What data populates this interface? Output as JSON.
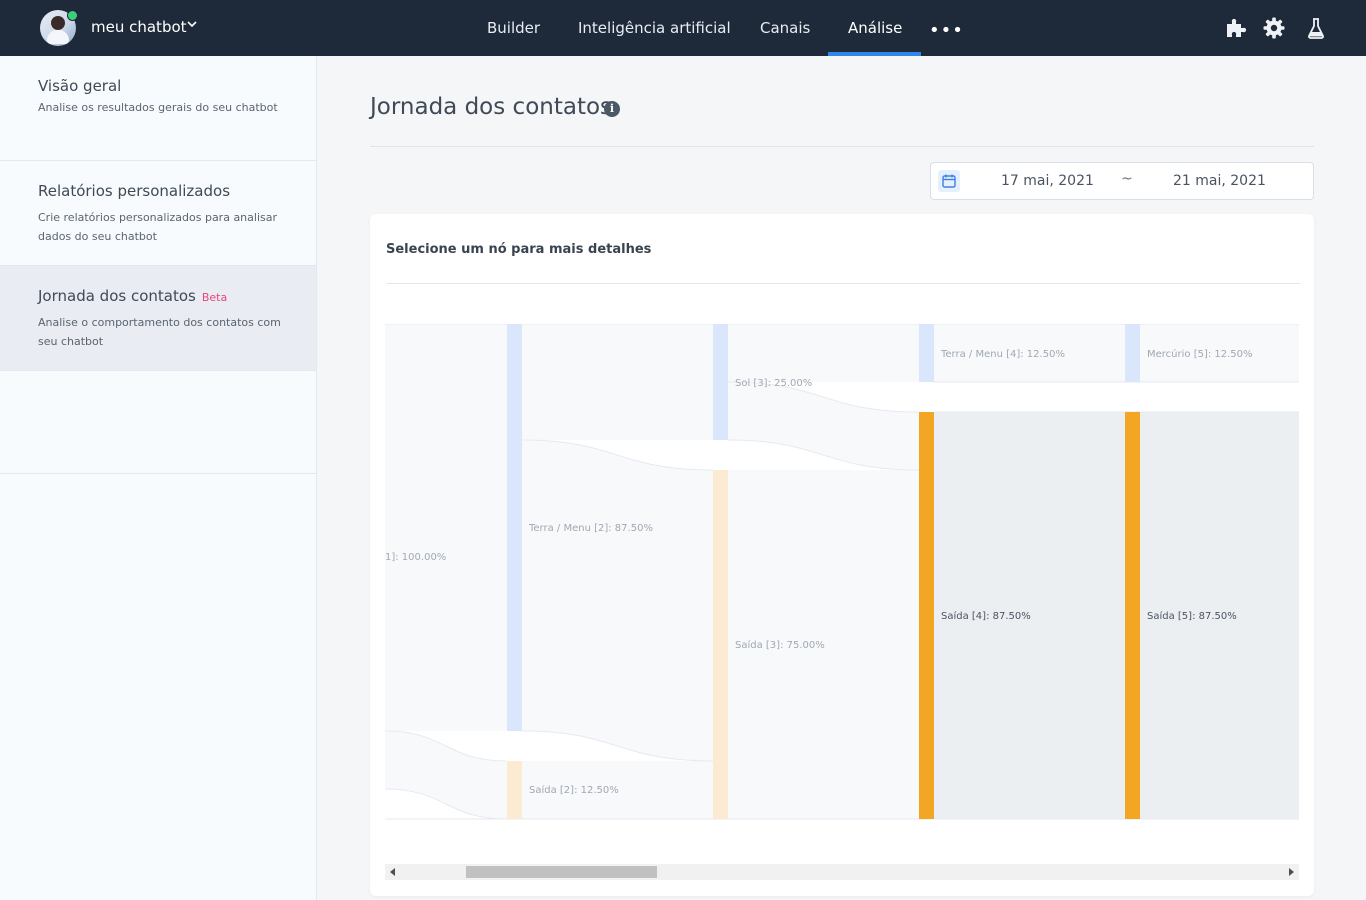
{
  "header": {
    "bot_name": "meu chatbot",
    "nav": [
      {
        "label": "Builder",
        "active": false
      },
      {
        "label": "Inteligência artificial",
        "active": false
      },
      {
        "label": "Canais",
        "active": false
      },
      {
        "label": "Análise",
        "active": true
      }
    ],
    "more": "•••",
    "icons": [
      "puzzle-icon",
      "gear-icon",
      "flask-icon"
    ],
    "accent": "#2f86e8"
  },
  "sidebar": {
    "items": [
      {
        "title": "Visão geral",
        "desc": "Analise os resultados gerais do seu chatbot",
        "badge": ""
      },
      {
        "title": "Relatórios personalizados",
        "desc": "Crie relatórios personalizados para analisar dados do seu chatbot",
        "badge": ""
      },
      {
        "title": "Jornada dos contatos",
        "desc": "Analise o comportamento dos contatos com seu chatbot",
        "badge": "Beta"
      }
    ]
  },
  "main": {
    "title": "Jornada dos contatos",
    "info": "i",
    "date_range": {
      "start": "17 mai, 2021",
      "separator": "~",
      "end": "21 mai, 2021"
    },
    "card_title": "Selecione um nó para mais detalhes"
  },
  "sankey": {
    "nodes": [
      {
        "label": "1]: 100.00%"
      },
      {
        "label": "Terra / Menu [2]: 87.50%"
      },
      {
        "label": "Saída [2]: 12.50%"
      },
      {
        "label": "Sol [3]: 25.00%"
      },
      {
        "label": "Saída [3]: 75.00%"
      },
      {
        "label": "Terra / Menu [4]: 12.50%"
      },
      {
        "label": "Saída [4]: 87.50%"
      },
      {
        "label": "Mercúrio [5]: 12.50%"
      },
      {
        "label": "Saída [5]: 87.50%"
      }
    ],
    "colors": {
      "menu": "#d9e6fb",
      "exit": "#fcebd3",
      "highlight": "#f2a623",
      "band": "#f7f9fb",
      "highlight_band": "#eceff2"
    }
  }
}
